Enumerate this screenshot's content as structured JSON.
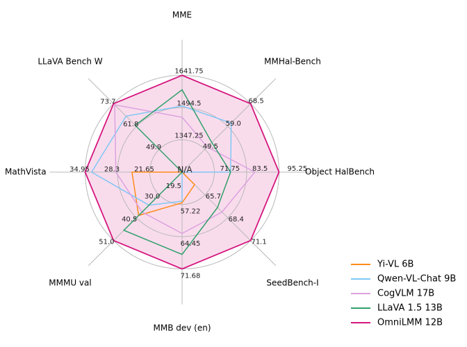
{
  "chart_data": {
    "type": "radar",
    "title": "",
    "axes": [
      "MME",
      "MMHal-Bench",
      "Object HalBench",
      "SeedBench-I",
      "MMB dev (en)",
      "MMMU val",
      "MathVista",
      "LLaVA Bench W"
    ],
    "center_label": "N/A",
    "ring_labels": [
      [
        "1347.25",
        "1494.5",
        "1641.75"
      ],
      [
        "49.5",
        "59.0",
        "68.5"
      ],
      [
        "71.75",
        "83.5",
        "95.25"
      ],
      [
        "65.7",
        "68.4",
        "71.1"
      ],
      [
        "57.22",
        "64.45",
        "71.68"
      ],
      [
        "30.0",
        "40.5",
        "51.0"
      ],
      [
        "21.65",
        "28.3",
        "34.95"
      ],
      [
        "49.9",
        "61.8",
        "73.7"
      ]
    ],
    "inner_labels": [
      "19.5"
    ],
    "grid": true,
    "legend_position": "lower-right",
    "series": [
      {
        "name": "Yi-VL 6B",
        "color": "#ff8c1a",
        "values": [
          0,
          0,
          0,
          0.55,
          0.95,
          1.9,
          1.55,
          0
        ]
      },
      {
        "name": "Qwen-VL-Chat 9B",
        "color": "#7fc7f5",
        "values": [
          2.05,
          2.15,
          1.5,
          0,
          0.9,
          1.45,
          2.8,
          2.45
        ]
      },
      {
        "name": "CogVLM 17B",
        "color": "#dca2e0",
        "values": [
          1.7,
          1.1,
          2.25,
          1.75,
          1.9,
          1.75,
          2.05,
          2.95
        ]
      },
      {
        "name": "LLaVA 1.5 13B",
        "color": "#2fa06b",
        "values": [
          2.55,
          1.3,
          1.5,
          1.55,
          2.55,
          2.55,
          0,
          2.05
        ]
      },
      {
        "name": "OmniLMM 12B",
        "color": "#d4167f",
        "values": [
          3.0,
          3.0,
          3.0,
          3.0,
          3.0,
          3.0,
          3.0,
          3.0
        ]
      }
    ],
    "fill_series": "OmniLMM 12B",
    "fill_color": "#f9dcec"
  }
}
